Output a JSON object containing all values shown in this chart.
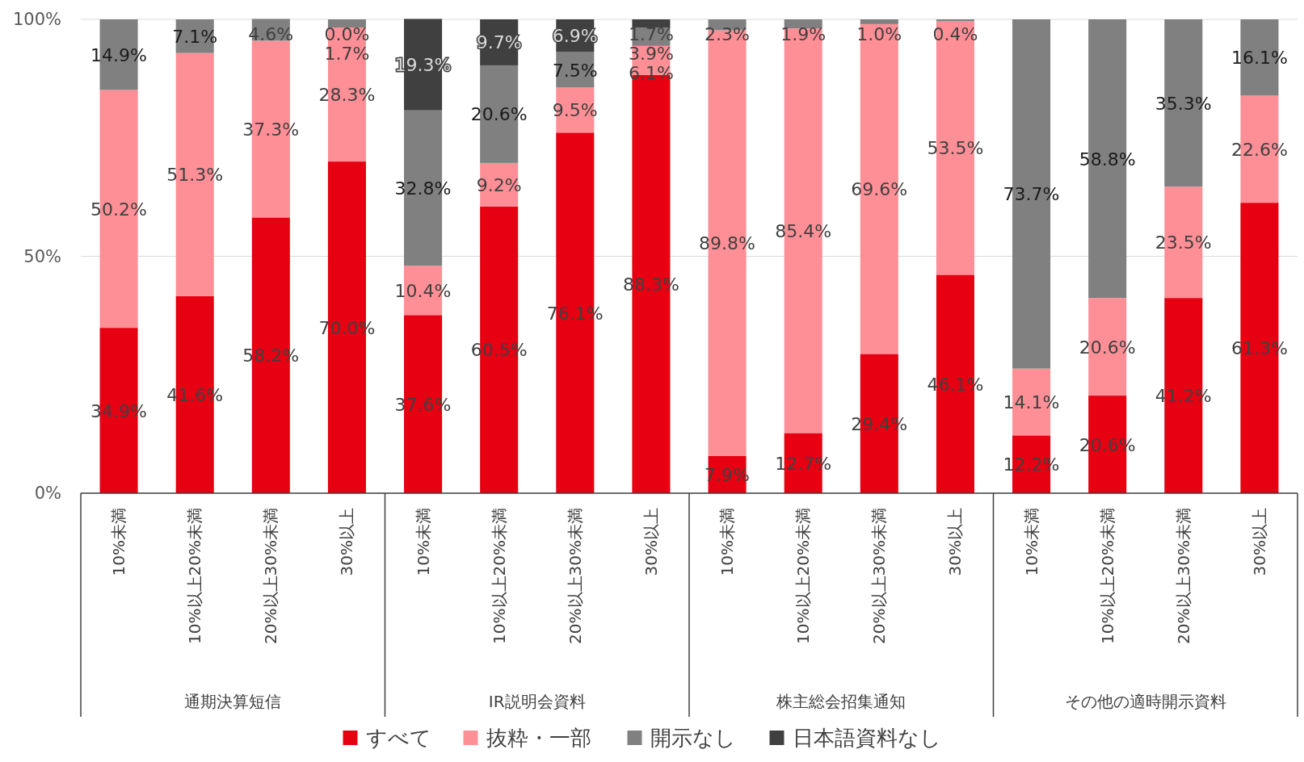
{
  "chart_data": {
    "type": "bar",
    "stacked": true,
    "grid": "y",
    "legend": "bottom",
    "categories": [
      "10%未満",
      "10%以上20%未満",
      "20%以上30%未満",
      "30%以上",
      "10%未満",
      "10%以上20%未満",
      "20%以上30%未満",
      "30%以上",
      "10%未満",
      "10%以上20%未満",
      "20%以上30%未満",
      "30%以上",
      "10%未満",
      "10%以上20%未満",
      "20%以上30%未満",
      "30%以上"
    ],
    "annotations": [
      "通期決算短信",
      "IR説明会資料",
      "株主総会招集通知",
      "その他の適時開示資料"
    ],
    "ylim": [
      0,
      100
    ],
    "yticks": [
      {
        "value": 0,
        "label": "0%"
      },
      {
        "value": 50,
        "label": "50%"
      },
      {
        "value": 100,
        "label": "100%"
      }
    ],
    "series": [
      {
        "name": "すべて",
        "color": "#e60012",
        "values": [
          34.9,
          41.6,
          58.2,
          70.0,
          37.6,
          60.5,
          76.1,
          88.3,
          7.9,
          12.7,
          29.4,
          46.1,
          12.2,
          20.6,
          41.2,
          61.3
        ],
        "value_labels": [
          "34.9%",
          "41.6%",
          "58.2%",
          "70.0%",
          "37.6%",
          "60.5%",
          "76.1%",
          "88.3%",
          "7.9%",
          "12.7%",
          "29.4%",
          "46.1%",
          "12.2%",
          "20.6%",
          "41.2%",
          "61.3%"
        ]
      },
      {
        "name": "抜粋・一部",
        "color": "#ff8f96",
        "values": [
          50.2,
          51.3,
          37.3,
          28.3,
          10.4,
          9.2,
          9.5,
          6.1,
          89.8,
          85.4,
          69.6,
          53.5,
          14.1,
          20.6,
          23.5,
          22.6
        ],
        "value_labels": [
          "50.2%",
          "51.3%",
          "37.3%",
          "28.3%",
          "10.4%",
          "9.2%",
          "9.5%",
          "6.1%",
          "89.8%",
          "85.4%",
          "69.6%",
          "53.5%",
          "14.1%",
          "20.6%",
          "23.5%",
          "22.6%"
        ]
      },
      {
        "name": "開示なし",
        "color": "#808080",
        "values": [
          14.9,
          7.1,
          4.6,
          1.7,
          32.8,
          20.6,
          7.5,
          3.9,
          2.3,
          1.9,
          1.0,
          0.4,
          73.7,
          58.8,
          35.3,
          16.1
        ],
        "value_labels": [
          "14.9%",
          "7.1%",
          "4.6%",
          "1.7%",
          "32.8%",
          "20.6%",
          "7.5%",
          "3.9%",
          "2.3%",
          "1.9%",
          "1.0%",
          "0.4%",
          "73.7%",
          "58.8%",
          "35.3%",
          "16.1%"
        ]
      },
      {
        "name": "日本語資料なし",
        "color": "#404040",
        "values": [
          null,
          null,
          null,
          0.0,
          19.3,
          9.7,
          6.9,
          1.7,
          null,
          null,
          null,
          null,
          null,
          null,
          null,
          null
        ],
        "value_labels": [
          null,
          null,
          null,
          "0.0%",
          "19.3%",
          "9.7%",
          "6.9%",
          "1.7%",
          null,
          null,
          null,
          null,
          null,
          null,
          null,
          null
        ]
      }
    ]
  }
}
